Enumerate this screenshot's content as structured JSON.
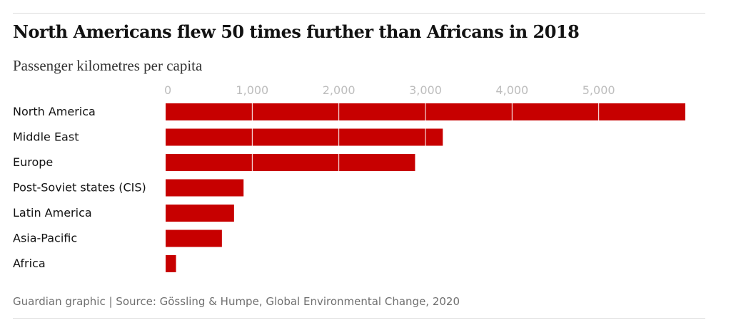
{
  "header": {
    "title": "North Americans flew 50 times further than Africans in 2018",
    "subtitle": "Passenger kilometres per capita"
  },
  "footer": {
    "source": "Guardian graphic | Source: Gössling & Humpe, Global Environmental Change, 2020"
  },
  "colors": {
    "bar": "#c70000",
    "gridline": "#ffffff",
    "tick_text": "#bdbdbd"
  },
  "chart_data": {
    "type": "bar",
    "orientation": "horizontal",
    "title": "North Americans flew 50 times further than Africans in 2018",
    "subtitle": "Passenger kilometres per capita",
    "categories": [
      "North America",
      "Middle East",
      "Europe",
      "Post-Soviet states (CIS)",
      "Latin America",
      "Asia-Pacific",
      "Africa"
    ],
    "values": [
      6000,
      3200,
      2880,
      900,
      790,
      650,
      120
    ],
    "ticks": [
      0,
      1000,
      2000,
      3000,
      4000,
      5000
    ],
    "tick_labels": [
      "0",
      "1,000",
      "2,000",
      "3,000",
      "4,000",
      "5,000"
    ],
    "xlim": [
      0,
      6000
    ],
    "grid": true
  }
}
